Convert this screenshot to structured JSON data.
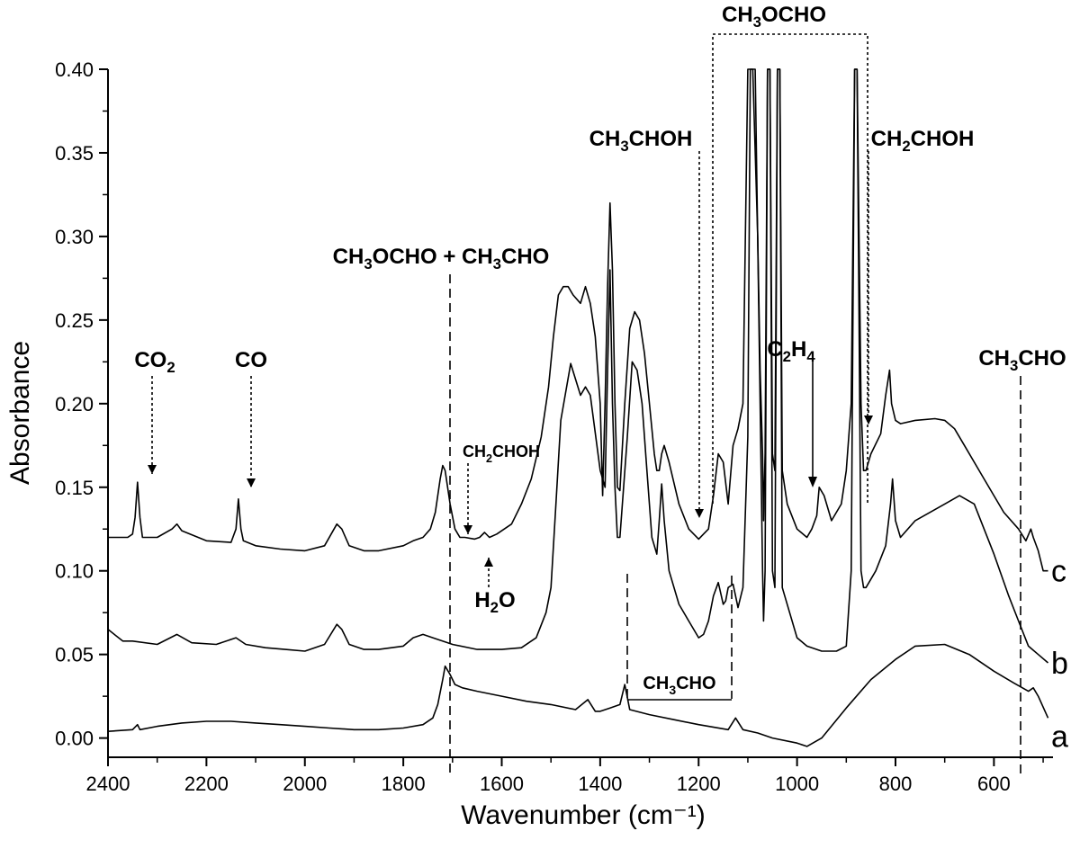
{
  "chart_data": {
    "type": "line",
    "title": "",
    "xlabel": "Wavenumber (cm⁻¹)",
    "ylabel": "Absorbance",
    "xlim": [
      2400,
      480
    ],
    "ylim": [
      -0.0115,
      0.4
    ],
    "x_reversed": true,
    "grid": false,
    "x_ticks": [
      "2400",
      "2200",
      "2000",
      "1800",
      "1600",
      "1400",
      "1200",
      "1000",
      "800",
      "600"
    ],
    "y_ticks": [
      "0.00",
      "0.05",
      "0.10",
      "0.15",
      "0.20",
      "0.25",
      "0.30",
      "0.35",
      "0.40"
    ],
    "series": [
      {
        "name": "a",
        "x": [
          2400,
          2350,
          2340,
          2335,
          2300,
          2250,
          2200,
          2150,
          2100,
          2050,
          2000,
          1950,
          1900,
          1850,
          1800,
          1760,
          1740,
          1730,
          1720,
          1715,
          1705,
          1695,
          1680,
          1650,
          1600,
          1550,
          1500,
          1450,
          1425,
          1410,
          1400,
          1380,
          1360,
          1350,
          1340,
          1300,
          1250,
          1200,
          1140,
          1125,
          1110,
          1080,
          1050,
          1000,
          980,
          950,
          900,
          850,
          800,
          760,
          700,
          650,
          600,
          560,
          530,
          520,
          510,
          490
        ],
        "y": [
          0.004,
          0.005,
          0.008,
          0.005,
          0.007,
          0.009,
          0.01,
          0.01,
          0.009,
          0.008,
          0.007,
          0.006,
          0.005,
          0.005,
          0.006,
          0.008,
          0.012,
          0.02,
          0.035,
          0.043,
          0.038,
          0.032,
          0.03,
          0.028,
          0.025,
          0.022,
          0.02,
          0.017,
          0.023,
          0.016,
          0.016,
          0.018,
          0.02,
          0.032,
          0.017,
          0.014,
          0.011,
          0.008,
          0.005,
          0.012,
          0.005,
          0.003,
          0.0,
          -0.003,
          -0.005,
          0.0,
          0.018,
          0.035,
          0.047,
          0.055,
          0.056,
          0.05,
          0.04,
          0.033,
          0.028,
          0.03,
          0.025,
          0.012
        ]
      },
      {
        "name": "b",
        "x": [
          2400,
          2370,
          2350,
          2300,
          2260,
          2230,
          2180,
          2140,
          2120,
          2080,
          2040,
          2000,
          1960,
          1935,
          1925,
          1910,
          1880,
          1850,
          1800,
          1780,
          1760,
          1740,
          1700,
          1650,
          1600,
          1560,
          1530,
          1510,
          1500,
          1490,
          1480,
          1460,
          1440,
          1430,
          1420,
          1400,
          1390,
          1385,
          1380,
          1375,
          1370,
          1365,
          1360,
          1345,
          1335,
          1325,
          1315,
          1305,
          1295,
          1285,
          1280,
          1275,
          1270,
          1260,
          1240,
          1220,
          1200,
          1190,
          1180,
          1170,
          1160,
          1150,
          1145,
          1140,
          1130,
          1125,
          1120,
          1110,
          1100,
          1095,
          1085,
          1075,
          1070,
          1068,
          1065,
          1060,
          1055,
          1050,
          1045,
          1040,
          1035,
          1030,
          1000,
          980,
          950,
          920,
          900,
          890,
          883,
          878,
          870,
          865,
          860,
          840,
          820,
          810,
          806,
          800,
          790,
          760,
          700,
          670,
          640,
          600,
          570,
          550,
          530,
          510,
          490
        ],
        "y": [
          0.065,
          0.058,
          0.058,
          0.056,
          0.062,
          0.057,
          0.056,
          0.06,
          0.056,
          0.054,
          0.053,
          0.052,
          0.056,
          0.068,
          0.065,
          0.056,
          0.053,
          0.053,
          0.055,
          0.06,
          0.062,
          0.06,
          0.056,
          0.053,
          0.053,
          0.054,
          0.06,
          0.075,
          0.09,
          0.14,
          0.19,
          0.224,
          0.205,
          0.21,
          0.205,
          0.16,
          0.15,
          0.22,
          0.28,
          0.2,
          0.15,
          0.12,
          0.12,
          0.18,
          0.225,
          0.22,
          0.2,
          0.16,
          0.12,
          0.11,
          0.13,
          0.152,
          0.13,
          0.1,
          0.08,
          0.07,
          0.06,
          0.062,
          0.07,
          0.085,
          0.093,
          0.08,
          0.082,
          0.09,
          0.092,
          0.085,
          0.078,
          0.09,
          0.18,
          0.4,
          0.4,
          0.2,
          0.1,
          0.07,
          0.1,
          0.4,
          0.4,
          0.1,
          0.09,
          0.4,
          0.4,
          0.09,
          0.06,
          0.055,
          0.052,
          0.052,
          0.055,
          0.1,
          0.4,
          0.4,
          0.1,
          0.09,
          0.09,
          0.1,
          0.115,
          0.14,
          0.155,
          0.13,
          0.12,
          0.13,
          0.14,
          0.145,
          0.14,
          0.11,
          0.085,
          0.07,
          0.055,
          0.05,
          0.045
        ]
      },
      {
        "name": "c",
        "x": [
          2400,
          2360,
          2350,
          2345,
          2340,
          2335,
          2330,
          2300,
          2270,
          2260,
          2250,
          2200,
          2150,
          2140,
          2135,
          2130,
          2125,
          2100,
          2050,
          2000,
          1960,
          1935,
          1925,
          1910,
          1880,
          1850,
          1800,
          1780,
          1760,
          1745,
          1735,
          1725,
          1720,
          1715,
          1705,
          1695,
          1685,
          1675,
          1655,
          1645,
          1635,
          1625,
          1610,
          1580,
          1560,
          1540,
          1520,
          1505,
          1495,
          1485,
          1475,
          1465,
          1455,
          1440,
          1430,
          1420,
          1410,
          1400,
          1395,
          1390,
          1385,
          1380,
          1375,
          1370,
          1365,
          1360,
          1350,
          1340,
          1330,
          1320,
          1310,
          1300,
          1290,
          1285,
          1280,
          1275,
          1270,
          1260,
          1240,
          1220,
          1200,
          1190,
          1180,
          1170,
          1160,
          1150,
          1140,
          1130,
          1120,
          1110,
          1105,
          1100,
          1090,
          1080,
          1075,
          1070,
          1068,
          1065,
          1060,
          1055,
          1050,
          1045,
          1040,
          1035,
          1030,
          1020,
          1000,
          980,
          970,
          960,
          955,
          945,
          930,
          910,
          900,
          890,
          883,
          878,
          870,
          865,
          860,
          850,
          830,
          820,
          812,
          808,
          800,
          790,
          760,
          720,
          700,
          680,
          660,
          620,
          580,
          550,
          535,
          525,
          520,
          510,
          500,
          490
        ],
        "y": [
          0.12,
          0.12,
          0.122,
          0.132,
          0.153,
          0.132,
          0.12,
          0.12,
          0.125,
          0.128,
          0.124,
          0.118,
          0.117,
          0.125,
          0.143,
          0.125,
          0.118,
          0.115,
          0.113,
          0.112,
          0.115,
          0.128,
          0.125,
          0.115,
          0.112,
          0.112,
          0.115,
          0.118,
          0.12,
          0.125,
          0.135,
          0.155,
          0.163,
          0.16,
          0.14,
          0.125,
          0.12,
          0.12,
          0.119,
          0.12,
          0.123,
          0.12,
          0.122,
          0.128,
          0.14,
          0.155,
          0.18,
          0.21,
          0.24,
          0.265,
          0.27,
          0.27,
          0.265,
          0.26,
          0.27,
          0.26,
          0.24,
          0.2,
          0.145,
          0.2,
          0.27,
          0.32,
          0.28,
          0.2,
          0.15,
          0.148,
          0.2,
          0.245,
          0.255,
          0.25,
          0.23,
          0.2,
          0.17,
          0.16,
          0.16,
          0.17,
          0.175,
          0.165,
          0.14,
          0.125,
          0.119,
          0.122,
          0.125,
          0.145,
          0.17,
          0.165,
          0.14,
          0.175,
          0.185,
          0.2,
          0.3,
          0.4,
          0.4,
          0.3,
          0.22,
          0.17,
          0.13,
          0.17,
          0.4,
          0.4,
          0.17,
          0.16,
          0.4,
          0.4,
          0.16,
          0.14,
          0.125,
          0.12,
          0.125,
          0.133,
          0.15,
          0.145,
          0.13,
          0.14,
          0.16,
          0.2,
          0.4,
          0.4,
          0.2,
          0.16,
          0.16,
          0.17,
          0.182,
          0.205,
          0.22,
          0.2,
          0.19,
          0.188,
          0.19,
          0.191,
          0.19,
          0.185,
          0.175,
          0.155,
          0.135,
          0.125,
          0.118,
          0.125,
          0.12,
          0.112,
          0.1,
          0.1
        ]
      }
    ],
    "series_labels": [
      "a",
      "b",
      "c"
    ],
    "annotations": [
      {
        "id": "co2",
        "base": "CO",
        "sub": "2",
        "tail": ""
      },
      {
        "id": "co",
        "base": "CO",
        "sub": "",
        "tail": ""
      },
      {
        "id": "ch3ocho-ch3cho",
        "base": "CH",
        "sub": "3",
        "tail": "OCHO + CH",
        "sub2": "3",
        "tail2": "CHO"
      },
      {
        "id": "ch2choh-small",
        "base": "CH",
        "sub": "2",
        "tail": "CHOH"
      },
      {
        "id": "h2o",
        "base": "H",
        "sub": "2",
        "tail": "O"
      },
      {
        "id": "ch3choh",
        "base": "CH",
        "sub": "3",
        "tail": "CHOH"
      },
      {
        "id": "ch3ocho",
        "base": "CH",
        "sub": "3",
        "tail": "OCHO"
      },
      {
        "id": "ch2choh",
        "base": "CH",
        "sub": "2",
        "tail": "CHOH"
      },
      {
        "id": "c2h4",
        "base": "C",
        "sub": "2",
        "tail": "H",
        "sub2": "4",
        "tail2": ""
      },
      {
        "id": "ch3cho-right",
        "base": "CH",
        "sub": "3",
        "tail": "CHO"
      },
      {
        "id": "ch3cho-mid",
        "base": "CH",
        "sub": "3",
        "tail": "CHO"
      }
    ]
  }
}
